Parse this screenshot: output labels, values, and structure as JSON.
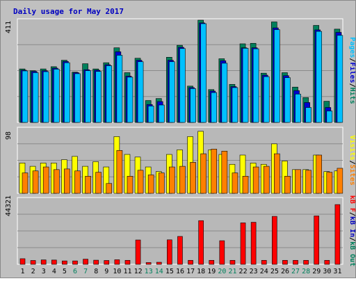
{
  "title": "Daily usage for May 2017",
  "colors": {
    "background": "#c0c0c0",
    "panel": "#b8b8b8",
    "title": "#0000c0",
    "hits": "#00805c",
    "files": "#0000d0",
    "pages": "#00c0ff",
    "visits": "#ffff00",
    "sites": "#ff8000",
    "kb_out": "#00805c",
    "kb_in": "#0000c0",
    "kb_f": "#ff0000",
    "weekend_label": "#00805c",
    "weekday_label": "#000000"
  },
  "weekend_days": [
    6,
    7,
    13,
    14,
    20,
    21,
    27,
    28
  ],
  "chart_data": [
    {
      "type": "bar",
      "panel": "top",
      "ymax_label": "411",
      "ylim": [
        0,
        411
      ],
      "legend": [
        "Pages",
        "Files",
        "Hits"
      ],
      "categories": [
        "1",
        "2",
        "3",
        "4",
        "5",
        "6",
        "7",
        "8",
        "9",
        "10",
        "11",
        "12",
        "13",
        "14",
        "15",
        "16",
        "17",
        "18",
        "19",
        "20",
        "21",
        "22",
        "23",
        "24",
        "25",
        "26",
        "27",
        "28",
        "29",
        "30",
        "31"
      ],
      "series": [
        {
          "name": "Hits",
          "values": [
            215,
            208,
            215,
            224,
            250,
            202,
            236,
            215,
            240,
            300,
            200,
            258,
            88,
            96,
            262,
            310,
            146,
            411,
            132,
            256,
            153,
            316,
            318,
            198,
            404,
            200,
            142,
            100,
            390,
            85,
            375
          ]
        },
        {
          "name": "Files",
          "values": [
            210,
            205,
            208,
            218,
            245,
            200,
            212,
            210,
            232,
            284,
            186,
            250,
            72,
            84,
            250,
            302,
            140,
            400,
            126,
            248,
            144,
            300,
            300,
            190,
            380,
            188,
            128,
            80,
            372,
            60,
            362
          ]
        },
        {
          "name": "Pages",
          "values": [
            207,
            200,
            204,
            214,
            240,
            196,
            208,
            205,
            228,
            270,
            182,
            244,
            66,
            70,
            244,
            297,
            136,
            397,
            120,
            238,
            140,
            298,
            296,
            184,
            373,
            180,
            114,
            60,
            366,
            46,
            350
          ]
        }
      ]
    },
    {
      "type": "bar",
      "panel": "middle",
      "ymax_label": "98",
      "ylim": [
        0,
        98
      ],
      "legend": [
        "Visits",
        "Sites"
      ],
      "categories": [
        "1",
        "2",
        "3",
        "4",
        "5",
        "6",
        "7",
        "8",
        "9",
        "10",
        "11",
        "12",
        "13",
        "14",
        "15",
        "16",
        "17",
        "18",
        "19",
        "20",
        "21",
        "22",
        "23",
        "24",
        "25",
        "26",
        "27",
        "28",
        "29",
        "30",
        "31"
      ],
      "series": [
        {
          "name": "Visits",
          "values": [
            46,
            41,
            46,
            46,
            51,
            56,
            41,
            48,
            40,
            86,
            59,
            55,
            40,
            33,
            59,
            66,
            86,
            94,
            66,
            59,
            44,
            58,
            46,
            44,
            75,
            49,
            36,
            36,
            58,
            33,
            34
          ]
        },
        {
          "name": "Sites",
          "values": [
            31,
            34,
            40,
            36,
            37,
            34,
            26,
            32,
            15,
            65,
            26,
            35,
            28,
            31,
            40,
            41,
            47,
            60,
            67,
            64,
            31,
            26,
            40,
            41,
            60,
            26,
            36,
            35,
            58,
            32,
            38
          ]
        }
      ]
    },
    {
      "type": "bar",
      "panel": "bottom",
      "ymax_label": "44321",
      "ylim": [
        0,
        44321
      ],
      "legend": [
        "kB F",
        "kB In",
        "kB Out"
      ],
      "categories": [
        "1",
        "2",
        "3",
        "4",
        "5",
        "6",
        "7",
        "8",
        "9",
        "10",
        "11",
        "12",
        "13",
        "14",
        "15",
        "16",
        "17",
        "18",
        "19",
        "20",
        "21",
        "22",
        "23",
        "24",
        "25",
        "26",
        "27",
        "28",
        "29",
        "30",
        "31"
      ],
      "series": [
        {
          "name": "kB F",
          "values": [
            3800,
            2600,
            3000,
            2900,
            2300,
            2300,
            3500,
            2800,
            2600,
            3100,
            2700,
            16500,
            1200,
            1400,
            16600,
            18900,
            2700,
            29600,
            2700,
            16000,
            2700,
            28100,
            28500,
            2700,
            32500,
            2700,
            2700,
            2700,
            32800,
            2700,
            40500
          ]
        }
      ]
    }
  ]
}
